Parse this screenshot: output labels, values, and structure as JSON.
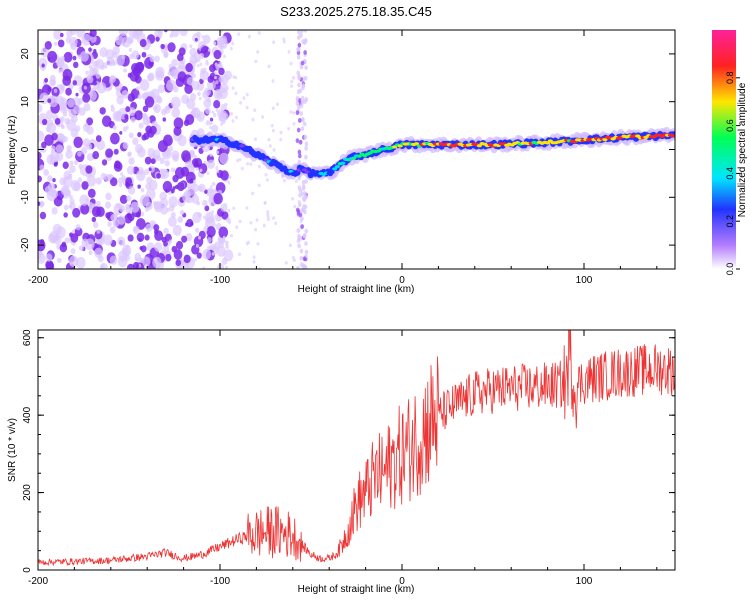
{
  "title": "S233.2025.275.18.35.C45",
  "chart_data": [
    {
      "type": "heatmap",
      "title": "S233.2025.275.18.35.C45",
      "xlabel": "Height of straight line (km)",
      "ylabel": "Frequency (Hz)",
      "xlim": [
        -200,
        150
      ],
      "ylim": [
        -25,
        25
      ],
      "xticks": [
        -200,
        -100,
        0,
        100
      ],
      "yticks": [
        -20,
        -10,
        0,
        10,
        20
      ],
      "colorbar": {
        "label": "Normalized spectral amplitude",
        "range": [
          0,
          1
        ],
        "ticks": [
          "0.0",
          "0.2",
          "0.4",
          "0.6",
          "0.8"
        ],
        "colors": [
          "#ffffff",
          "#b37dff",
          "#2233ff",
          "#00e5ff",
          "#00ff55",
          "#ffe600",
          "#ff2222"
        ]
      },
      "ridge": {
        "x": [
          -115,
          -100,
          -90,
          -80,
          -70,
          -60,
          -55,
          -50,
          -40,
          -30,
          -20,
          -10,
          0,
          20,
          50,
          80,
          100,
          120,
          150
        ],
        "frequency": [
          2,
          2,
          1,
          -1,
          -3,
          -5,
          -4,
          -5,
          -5,
          -2,
          -1,
          0,
          1,
          1,
          1,
          1.5,
          2,
          2.5,
          3
        ],
        "amplitude": [
          0.3,
          0.35,
          0.3,
          0.3,
          0.35,
          0.35,
          0.25,
          0.3,
          0.4,
          0.5,
          0.5,
          0.55,
          0.6,
          0.85,
          0.75,
          0.7,
          0.8,
          0.85,
          0.9
        ]
      },
      "noise_region_x": [
        -200,
        -115
      ],
      "noise_column_x": -55
    },
    {
      "type": "line",
      "xlabel": "Height of straight line (km)",
      "ylabel": "SNR (10 * v/v)",
      "xlim": [
        -200,
        150
      ],
      "ylim": [
        0,
        620
      ],
      "xticks": [
        -200,
        -100,
        0,
        100
      ],
      "yticks": [
        0,
        200,
        400,
        600
      ],
      "color": "#ee3333",
      "series": [
        {
          "name": "SNR",
          "x": [
            -200,
            -180,
            -160,
            -140,
            -130,
            -120,
            -110,
            -100,
            -90,
            -80,
            -70,
            -60,
            -50,
            -45,
            -40,
            -35,
            -30,
            -25,
            -20,
            -15,
            -10,
            -5,
            0,
            5,
            10,
            15,
            20,
            30,
            40,
            50,
            60,
            70,
            80,
            90,
            92,
            95,
            100,
            110,
            120,
            130,
            140,
            150
          ],
          "y": [
            20,
            22,
            25,
            35,
            45,
            30,
            40,
            60,
            80,
            95,
            100,
            90,
            40,
            30,
            30,
            45,
            100,
            170,
            200,
            240,
            250,
            280,
            300,
            320,
            350,
            380,
            400,
            430,
            455,
            465,
            470,
            472,
            475,
            480,
            560,
            470,
            490,
            500,
            510,
            515,
            520,
            515
          ]
        }
      ]
    }
  ]
}
